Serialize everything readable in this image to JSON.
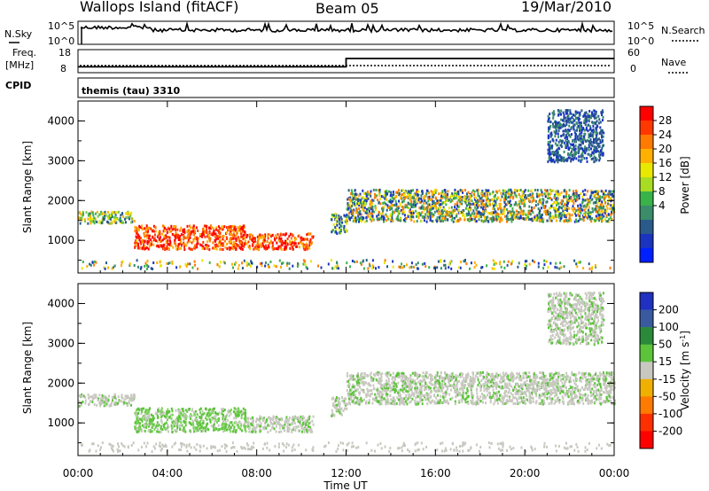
{
  "header": {
    "left_title": "Wallops Island (fitACF)",
    "center_title": "Beam 05",
    "right_title": "19/Mar/2010"
  },
  "noise_panel": {
    "left_label": "N.Sky",
    "left_ticks": [
      "10^5",
      "10^0"
    ],
    "right_ticks": [
      "10^5",
      "10^0"
    ],
    "right_label": "N.Search"
  },
  "freq_panel": {
    "left_label_1": "Freq.",
    "left_label_2": "[MHz]",
    "left_ticks": [
      "18",
      "8"
    ],
    "right_ticks": [
      "60",
      "0"
    ],
    "right_label": "Nave",
    "freq_values_mhz": [
      10.3,
      10.3,
      15.0,
      15.0
    ],
    "freq_times_h": [
      0,
      12.0,
      12.0,
      24
    ]
  },
  "cpid": {
    "label": "CPID",
    "program": "themis (tau) 3310"
  },
  "time_axis": {
    "title": "Time UT",
    "ticks": [
      "00:00",
      "04:00",
      "08:00",
      "12:00",
      "16:00",
      "20:00",
      "00:00"
    ]
  },
  "chart_data": [
    {
      "type": "heatmap",
      "title": "",
      "xlabel": "Time UT",
      "ylabel": "Slant Range [km]",
      "xlim_hours": [
        0,
        24
      ],
      "ylim_km": [
        180,
        4500
      ],
      "y_ticks": [
        "1000",
        "2000",
        "3000",
        "4000"
      ],
      "colorbar": {
        "label": "Power [dB]",
        "ticks": [
          "28",
          "24",
          "20",
          "16",
          "12",
          "8",
          "4"
        ],
        "colors": [
          "#ff0000",
          "#ff3800",
          "#ff7a00",
          "#ffb000",
          "#e8e800",
          "#a8dc22",
          "#3ab24a",
          "#3a8c6a",
          "#2a5a8a",
          "#1a34c0",
          "#0020ff"
        ]
      },
      "scatter_regions": [
        {
          "t0": 0.0,
          "t1": 2.5,
          "r0": 1450,
          "r1": 1750,
          "value": "yellow-green"
        },
        {
          "t0": 2.5,
          "t1": 7.5,
          "r0": 800,
          "r1": 1400,
          "value": "red"
        },
        {
          "t0": 7.5,
          "t1": 10.5,
          "r0": 800,
          "r1": 1200,
          "value": "red"
        },
        {
          "t0": 11.3,
          "t1": 12.0,
          "r0": 1200,
          "r1": 1700,
          "value": "green"
        },
        {
          "t0": 12.0,
          "t1": 24.0,
          "r0": 1500,
          "r1": 2300,
          "value": "mixed"
        },
        {
          "t0": 21.0,
          "t1": 23.5,
          "r0": 3000,
          "r1": 4300,
          "value": "blue"
        }
      ]
    },
    {
      "type": "heatmap",
      "title": "",
      "xlabel": "Time UT",
      "ylabel": "Slant Range [km]",
      "xlim_hours": [
        0,
        24
      ],
      "ylim_km": [
        180,
        4500
      ],
      "y_ticks": [
        "1000",
        "2000",
        "3000",
        "4000"
      ],
      "colorbar": {
        "label_main": "Velocity [m s",
        "label_sup": "-1",
        "label_end": "]",
        "ticks": [
          "200",
          "100",
          "50",
          "15",
          "-15",
          "-50",
          "-100",
          "-200"
        ],
        "colors": [
          "#2030c0",
          "#3a5aa0",
          "#2a8a3a",
          "#5cc43a",
          "#c8c8c0",
          "#f0b000",
          "#ff7a00",
          "#ff3000",
          "#ff0000"
        ]
      },
      "scatter_regions": [
        {
          "t0": 0.0,
          "t1": 2.5,
          "r0": 1450,
          "r1": 1750,
          "value": "gray"
        },
        {
          "t0": 2.5,
          "t1": 7.5,
          "r0": 800,
          "r1": 1400,
          "value": "green"
        },
        {
          "t0": 7.5,
          "t1": 10.5,
          "r0": 800,
          "r1": 1200,
          "value": "gray"
        },
        {
          "t0": 11.3,
          "t1": 12.0,
          "r0": 1200,
          "r1": 1700,
          "value": "gray"
        },
        {
          "t0": 12.0,
          "t1": 24.0,
          "r0": 1500,
          "r1": 2300,
          "value": "gray"
        },
        {
          "t0": 21.0,
          "t1": 23.5,
          "r0": 3000,
          "r1": 4300,
          "value": "gray"
        }
      ]
    }
  ]
}
